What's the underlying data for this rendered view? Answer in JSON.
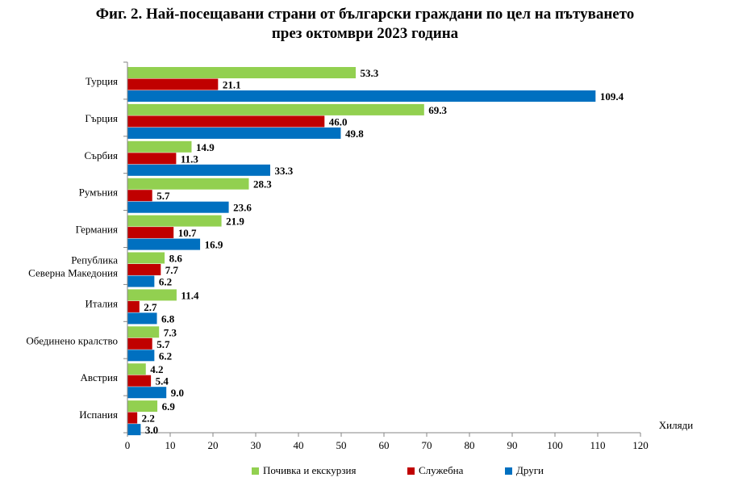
{
  "chart_data": {
    "type": "bar",
    "orientation": "horizontal",
    "title_line1": "Фиг. 2. Най-посещавани страни от български граждани по цел на пътуването",
    "title_line2": "през октомври 2023 година",
    "xlabel": "Хиляди",
    "xlim": [
      0,
      120
    ],
    "xticks": [
      "0",
      "10",
      "20",
      "30",
      "40",
      "50",
      "60",
      "70",
      "80",
      "90",
      "100",
      "110",
      "120"
    ],
    "categories": [
      [
        "Турция"
      ],
      [
        "Гърция"
      ],
      [
        "Сърбия"
      ],
      [
        "Румъния"
      ],
      [
        "Германия"
      ],
      [
        "Република",
        "Северна Македония"
      ],
      [
        "Италия"
      ],
      [
        "Обединено кралство"
      ],
      [
        "Австрия"
      ],
      [
        "Испания"
      ]
    ],
    "series": [
      {
        "name": "Почивка и екскурзия",
        "color": "#92D050",
        "values": [
          53.3,
          69.3,
          14.9,
          28.3,
          21.9,
          8.6,
          11.4,
          7.3,
          4.2,
          6.9
        ],
        "labels": [
          "53.3",
          "69.3",
          "14.9",
          "28.3",
          "21.9",
          "8.6",
          "11.4",
          "7.3",
          "4.2",
          "6.9"
        ]
      },
      {
        "name": "Служебна",
        "color": "#C00000",
        "values": [
          21.1,
          46.0,
          11.3,
          5.7,
          10.7,
          7.7,
          2.7,
          5.7,
          5.4,
          2.2
        ],
        "labels": [
          "21.1",
          "46.0",
          "11.3",
          "5.7",
          "10.7",
          "7.7",
          "2.7",
          "5.7",
          "5.4",
          "2.2"
        ]
      },
      {
        "name": "Други",
        "color": "#0070C0",
        "values": [
          109.4,
          49.8,
          33.3,
          23.6,
          16.9,
          6.2,
          6.8,
          6.2,
          9.0,
          3.0
        ],
        "labels": [
          "109.4",
          "49.8",
          "33.3",
          "23.6",
          "16.9",
          "6.2",
          "6.8",
          "6.2",
          "9.0",
          "3.0"
        ]
      }
    ],
    "grid": false,
    "legend_position": "bottom"
  }
}
